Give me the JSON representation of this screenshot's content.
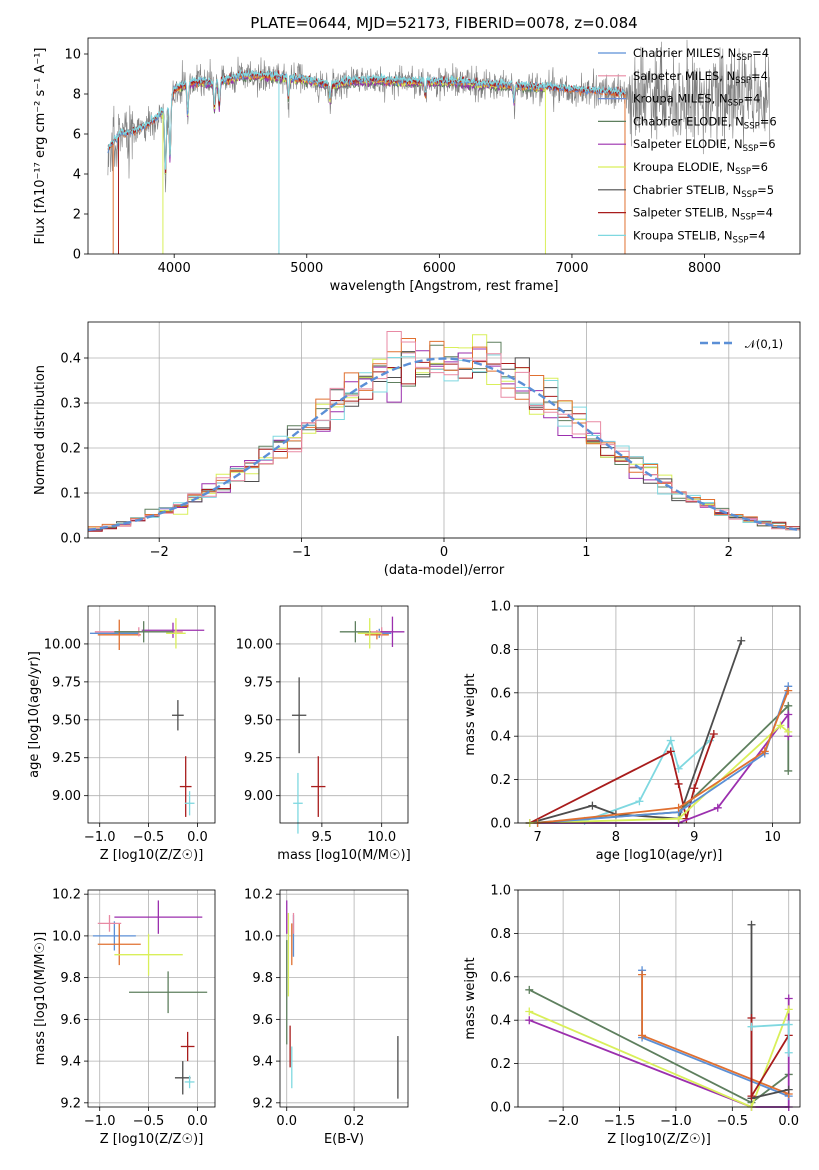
{
  "colors": {
    "chabrier_miles": "#5b8fd6",
    "salpeter_miles": "#e88aa4",
    "kroupa_miles": "#6c8cd5",
    "chabrier_elodie": "#5e7f5e",
    "salpeter_elodie": "#9b2fae",
    "kroupa_elodie": "#d9ef5a",
    "chabrier_stelib": "#4d4d4d",
    "salpeter_stelib": "#a81c1c",
    "kroupa_stelib": "#7fd8e0",
    "orange": "#e07030",
    "data_gray": "#808080"
  },
  "chart_data": [
    {
      "type": "line",
      "id": "spectrum",
      "title": "PLATE=0644, MJD=52173, FIBERID=0078, z=0.084",
      "xlabel": "wavelength [Angstrom, rest frame]",
      "ylabel": "Flux [fλ10⁻¹⁷ erg cm⁻² s⁻¹ A⁻¹]",
      "xlim": [
        3350,
        8720
      ],
      "ylim": [
        0,
        10.8
      ],
      "xticks": [
        4000,
        5000,
        6000,
        7000,
        8000
      ],
      "yticks": [
        0,
        2,
        4,
        6,
        8,
        10
      ],
      "grid": false,
      "legend_position": "upper right",
      "legend": [
        {
          "label": "Chabrier MILES, N",
          "sub": "SSP",
          "tail": "=4",
          "color": "chabrier_miles"
        },
        {
          "label": "Salpeter MILES, N",
          "sub": "SSP",
          "tail": "=4",
          "color": "salpeter_miles"
        },
        {
          "label": "Kroupa MILES, N",
          "sub": "SSP",
          "tail": "=4",
          "color": "kroupa_miles"
        },
        {
          "label": "Chabrier ELODIE, N",
          "sub": "SSP",
          "tail": "=6",
          "color": "chabrier_elodie"
        },
        {
          "label": "Salpeter ELODIE, N",
          "sub": "SSP",
          "tail": "=6",
          "color": "salpeter_elodie"
        },
        {
          "label": "Kroupa ELODIE, N",
          "sub": "SSP",
          "tail": "=6",
          "color": "kroupa_elodie"
        },
        {
          "label": "Chabrier STELIB, N",
          "sub": "SSP",
          "tail": "=5",
          "color": "chabrier_stelib"
        },
        {
          "label": "Salpeter STELIB, N",
          "sub": "SSP",
          "tail": "=4",
          "color": "salpeter_stelib"
        },
        {
          "label": "Kroupa STELIB, N",
          "sub": "SSP",
          "tail": "=4",
          "color": "kroupa_stelib"
        }
      ],
      "continuum": [
        [
          3500,
          5.2
        ],
        [
          3600,
          6.0
        ],
        [
          3700,
          6.1
        ],
        [
          3800,
          6.4
        ],
        [
          3900,
          7.0
        ],
        [
          3950,
          7.2
        ],
        [
          4000,
          8.2
        ],
        [
          4100,
          8.5
        ],
        [
          4200,
          8.6
        ],
        [
          4300,
          8.5
        ],
        [
          4400,
          8.7
        ],
        [
          4500,
          8.9
        ],
        [
          4700,
          8.9
        ],
        [
          4860,
          8.8
        ],
        [
          5000,
          8.7
        ],
        [
          5175,
          8.4
        ],
        [
          5300,
          8.6
        ],
        [
          5500,
          8.7
        ],
        [
          5700,
          8.6
        ],
        [
          5900,
          8.6
        ],
        [
          6100,
          8.6
        ],
        [
          6300,
          8.5
        ],
        [
          6563,
          8.4
        ],
        [
          6800,
          8.3
        ],
        [
          7000,
          8.2
        ],
        [
          7200,
          8.1
        ],
        [
          7400,
          8.0
        ],
        [
          7600,
          7.9
        ]
      ],
      "absorption_lines": [
        [
          3934,
          3.9
        ],
        [
          3969,
          4.8
        ],
        [
          4102,
          7.0
        ],
        [
          4304,
          7.3
        ],
        [
          4340,
          7.4
        ],
        [
          4861,
          7.8
        ],
        [
          5175,
          7.7
        ],
        [
          5893,
          7.9
        ],
        [
          6563,
          7.6
        ]
      ]
    },
    {
      "type": "histogram",
      "id": "residuals",
      "xlabel": "(data-model)/error",
      "ylabel": "Normed distribution",
      "xlim": [
        -2.5,
        2.5
      ],
      "ylim": [
        0,
        0.48
      ],
      "xticks": [
        -2,
        -1,
        0,
        1,
        2
      ],
      "yticks": [
        0.0,
        0.1,
        0.2,
        0.3,
        0.4
      ],
      "grid": true,
      "legend": [
        {
          "label": "𝒩(0,1)",
          "style": "dashed",
          "color": "chabrier_miles"
        }
      ],
      "legend_position": "upper right",
      "bin_width": 0.1,
      "series_colors": [
        "chabrier_elodie",
        "salpeter_elodie",
        "kroupa_elodie",
        "chabrier_stelib",
        "salpeter_stelib",
        "kroupa_stelib",
        "orange",
        "salpeter_miles"
      ]
    },
    {
      "type": "scatter",
      "id": "age_vs_Z",
      "xlabel": "Z [log10(Z/Z☉)]",
      "ylabel": "age  [log10(age/yr)]",
      "xlim": [
        -1.12,
        0.18
      ],
      "ylim": [
        8.82,
        10.25
      ],
      "xticks": [
        -1.0,
        -0.5,
        0.0
      ],
      "yticks": [
        9.0,
        9.25,
        9.5,
        9.75,
        10.0
      ],
      "grid": true,
      "points": [
        {
          "x": -0.85,
          "y": 10.07,
          "xerr": 0.25,
          "yerr": 0.0,
          "color": "chabrier_miles"
        },
        {
          "x": -0.8,
          "y": 10.06,
          "xerr": 0.22,
          "yerr": 0.1,
          "color": "orange"
        },
        {
          "x": -0.6,
          "y": 10.08,
          "xerr": 0.45,
          "yerr": 0.03,
          "color": "salpeter_miles"
        },
        {
          "x": -0.25,
          "y": 10.09,
          "xerr": 0.32,
          "yerr": 0.05,
          "color": "salpeter_elodie"
        },
        {
          "x": -0.55,
          "y": 10.08,
          "xerr": 0.3,
          "yerr": 0.07,
          "color": "chabrier_elodie"
        },
        {
          "x": -0.22,
          "y": 10.07,
          "xerr": 0.1,
          "yerr": 0.1,
          "color": "kroupa_elodie"
        },
        {
          "x": -0.2,
          "y": 9.53,
          "xerr": 0.06,
          "yerr": 0.1,
          "color": "chabrier_stelib"
        },
        {
          "x": -0.12,
          "y": 9.06,
          "xerr": 0.06,
          "yerr": 0.2,
          "color": "salpeter_stelib"
        },
        {
          "x": -0.08,
          "y": 8.95,
          "xerr": 0.05,
          "yerr": 0.08,
          "color": "kroupa_stelib"
        }
      ]
    },
    {
      "type": "scatter",
      "id": "age_vs_mass",
      "xlabel": "mass [log10(M/M☉)]",
      "ylabel": "",
      "xlim": [
        9.15,
        10.22
      ],
      "ylim": [
        8.82,
        10.25
      ],
      "xticks": [
        9.5,
        10.0
      ],
      "yticks": [
        9.0,
        9.25,
        9.5,
        9.75,
        10.0
      ],
      "grid": true,
      "points": [
        {
          "x": 9.98,
          "y": 10.07,
          "xerr": 0.1,
          "yerr": 0.03,
          "color": "chabrier_miles"
        },
        {
          "x": 9.96,
          "y": 10.06,
          "xerr": 0.1,
          "yerr": 0.03,
          "color": "orange"
        },
        {
          "x": 10.0,
          "y": 10.08,
          "xerr": 0.1,
          "yerr": 0.03,
          "color": "salpeter_miles"
        },
        {
          "x": 10.09,
          "y": 10.08,
          "xerr": 0.1,
          "yerr": 0.1,
          "color": "salpeter_elodie"
        },
        {
          "x": 9.78,
          "y": 10.08,
          "xerr": 0.13,
          "yerr": 0.07,
          "color": "chabrier_elodie"
        },
        {
          "x": 9.9,
          "y": 10.07,
          "xerr": 0.1,
          "yerr": 0.1,
          "color": "kroupa_elodie"
        },
        {
          "x": 9.31,
          "y": 9.53,
          "xerr": 0.06,
          "yerr": 0.25,
          "color": "chabrier_stelib"
        },
        {
          "x": 9.47,
          "y": 9.06,
          "xerr": 0.06,
          "yerr": 0.2,
          "color": "salpeter_stelib"
        },
        {
          "x": 9.3,
          "y": 8.95,
          "xerr": 0.04,
          "yerr": 0.2,
          "color": "kroupa_stelib"
        }
      ]
    },
    {
      "type": "line",
      "id": "weight_vs_age",
      "xlabel": "age  [log10(age/yr)]",
      "ylabel": "mass weight",
      "xlim": [
        6.75,
        10.35
      ],
      "ylim": [
        0,
        1.0
      ],
      "xticks": [
        7,
        8,
        9,
        10
      ],
      "yticks": [
        0.0,
        0.2,
        0.4,
        0.6,
        0.8,
        1.0
      ],
      "grid": true,
      "series": [
        {
          "color": "kroupa_stelib",
          "points": [
            [
              6.9,
              0.0
            ],
            [
              7.6,
              0.01
            ],
            [
              8.3,
              0.1
            ],
            [
              8.7,
              0.38
            ],
            [
              8.8,
              0.25
            ],
            [
              9.2,
              0.38
            ]
          ]
        },
        {
          "color": "chabrier_stelib",
          "points": [
            [
              6.9,
              0.0
            ],
            [
              7.7,
              0.08
            ],
            [
              8.0,
              0.04
            ],
            [
              8.8,
              0.02
            ],
            [
              9.6,
              0.84
            ]
          ]
        },
        {
          "color": "salpeter_stelib",
          "points": [
            [
              6.9,
              0.0
            ],
            [
              8.7,
              0.33
            ],
            [
              8.8,
              0.18
            ],
            [
              8.9,
              0.02
            ],
            [
              9.0,
              0.16
            ],
            [
              9.25,
              0.41
            ]
          ]
        },
        {
          "color": "chabrier_elodie",
          "points": [
            [
              6.9,
              0.0
            ],
            [
              8.8,
              0.05
            ],
            [
              10.2,
              0.54
            ],
            [
              10.2,
              0.24
            ]
          ]
        },
        {
          "color": "salpeter_elodie",
          "points": [
            [
              6.9,
              0.0
            ],
            [
              8.8,
              0.0
            ],
            [
              9.3,
              0.07
            ],
            [
              10.2,
              0.5
            ],
            [
              10.2,
              0.4
            ]
          ]
        },
        {
          "color": "kroupa_elodie",
          "points": [
            [
              6.9,
              0.0
            ],
            [
              8.8,
              0.02
            ],
            [
              10.1,
              0.45
            ],
            [
              10.2,
              0.42
            ]
          ]
        },
        {
          "color": "chabrier_miles",
          "points": [
            [
              7.0,
              0.0
            ],
            [
              8.8,
              0.05
            ],
            [
              9.9,
              0.32
            ],
            [
              10.2,
              0.63
            ]
          ]
        },
        {
          "color": "orange",
          "points": [
            [
              7.0,
              0.0
            ],
            [
              8.8,
              0.07
            ],
            [
              9.9,
              0.33
            ],
            [
              10.2,
              0.61
            ]
          ]
        }
      ]
    },
    {
      "type": "scatter",
      "id": "mass_vs_Z",
      "xlabel": "Z [log10(Z/Z☉)]",
      "ylabel": "mass [log10(M/M☉)]",
      "xlim": [
        -1.12,
        0.18
      ],
      "ylim": [
        9.18,
        10.22
      ],
      "xticks": [
        -1.0,
        -0.5,
        0.0
      ],
      "yticks": [
        9.2,
        9.4,
        9.6,
        9.8,
        10.0,
        10.2
      ],
      "grid": true,
      "points": [
        {
          "x": -0.85,
          "y": 10.0,
          "xerr": 0.22,
          "yerr": 0.07,
          "color": "chabrier_miles"
        },
        {
          "x": -0.8,
          "y": 9.96,
          "xerr": 0.22,
          "yerr": 0.1,
          "color": "orange"
        },
        {
          "x": -0.9,
          "y": 10.06,
          "xerr": 0.12,
          "yerr": 0.04,
          "color": "salpeter_miles"
        },
        {
          "x": -0.4,
          "y": 10.09,
          "xerr": 0.45,
          "yerr": 0.08,
          "color": "salpeter_elodie"
        },
        {
          "x": -0.3,
          "y": 9.73,
          "xerr": 0.4,
          "yerr": 0.1,
          "color": "chabrier_elodie"
        },
        {
          "x": -0.5,
          "y": 9.91,
          "xerr": 0.35,
          "yerr": 0.1,
          "color": "kroupa_elodie"
        },
        {
          "x": -0.15,
          "y": 9.32,
          "xerr": 0.08,
          "yerr": 0.08,
          "color": "chabrier_stelib"
        },
        {
          "x": -0.1,
          "y": 9.47,
          "xerr": 0.07,
          "yerr": 0.07,
          "color": "salpeter_stelib"
        },
        {
          "x": -0.08,
          "y": 9.3,
          "xerr": 0.05,
          "yerr": 0.03,
          "color": "kroupa_stelib"
        }
      ]
    },
    {
      "type": "scatter",
      "id": "mass_vs_ebv",
      "xlabel": "E(B-V)",
      "ylabel": "",
      "xlim": [
        -0.02,
        0.36
      ],
      "ylim": [
        9.18,
        10.22
      ],
      "xticks": [
        0.0,
        0.2
      ],
      "yticks": [
        9.2,
        9.4,
        9.6,
        9.8,
        10.0,
        10.2
      ],
      "grid": true,
      "points": [
        {
          "x": 0.02,
          "y": 10.0,
          "xerr": 0.0,
          "yerr": 0.1,
          "color": "chabrier_miles"
        },
        {
          "x": 0.015,
          "y": 9.96,
          "xerr": 0.0,
          "yerr": 0.1,
          "color": "orange"
        },
        {
          "x": 0.02,
          "y": 10.06,
          "xerr": 0.0,
          "yerr": 0.05,
          "color": "salpeter_miles"
        },
        {
          "x": 0.0,
          "y": 10.09,
          "xerr": 0.0,
          "yerr": 0.08,
          "color": "salpeter_elodie"
        },
        {
          "x": 0.0,
          "y": 9.73,
          "xerr": 0.0,
          "yerr": 0.25,
          "color": "chabrier_elodie"
        },
        {
          "x": 0.005,
          "y": 9.91,
          "xerr": 0.0,
          "yerr": 0.2,
          "color": "kroupa_elodie"
        },
        {
          "x": 0.33,
          "y": 9.37,
          "xerr": 0.0,
          "yerr": 0.15,
          "color": "chabrier_stelib"
        },
        {
          "x": 0.01,
          "y": 9.47,
          "xerr": 0.0,
          "yerr": 0.1,
          "color": "salpeter_stelib"
        },
        {
          "x": 0.015,
          "y": 9.37,
          "xerr": 0.0,
          "yerr": 0.1,
          "color": "kroupa_stelib"
        }
      ]
    },
    {
      "type": "line",
      "id": "weight_vs_Z",
      "xlabel": "Z [log10(Z/Z☉)]",
      "ylabel": "mass weight",
      "xlim": [
        -2.4,
        0.1
      ],
      "ylim": [
        0,
        1.0
      ],
      "xticks": [
        -2.0,
        -1.5,
        -1.0,
        -0.5,
        0.0
      ],
      "yticks": [
        0.0,
        0.2,
        0.4,
        0.6,
        0.8,
        1.0
      ],
      "grid": true,
      "series": [
        {
          "color": "chabrier_elodie",
          "points": [
            [
              -2.3,
              0.54
            ],
            [
              -0.33,
              0.02
            ],
            [
              0.0,
              0.15
            ]
          ]
        },
        {
          "color": "salpeter_elodie",
          "points": [
            [
              -2.3,
              0.4
            ],
            [
              -0.33,
              0.0
            ],
            [
              0.0,
              0.0
            ],
            [
              0.0,
              0.5
            ]
          ]
        },
        {
          "color": "kroupa_elodie",
          "points": [
            [
              -2.3,
              0.44
            ],
            [
              -0.33,
              0.0
            ],
            [
              0.0,
              0.45
            ]
          ]
        },
        {
          "color": "chabrier_miles",
          "points": [
            [
              -1.3,
              0.63
            ],
            [
              -1.3,
              0.32
            ],
            [
              0.0,
              0.05
            ]
          ]
        },
        {
          "color": "orange",
          "points": [
            [
              -1.3,
              0.61
            ],
            [
              -1.3,
              0.33
            ],
            [
              0.0,
              0.06
            ]
          ]
        },
        {
          "color": "chabrier_stelib",
          "points": [
            [
              -0.33,
              0.84
            ],
            [
              -0.33,
              0.04
            ],
            [
              0.0,
              0.08
            ]
          ]
        },
        {
          "color": "salpeter_stelib",
          "points": [
            [
              -0.33,
              0.41
            ],
            [
              -0.33,
              0.05
            ],
            [
              0.0,
              0.33
            ]
          ]
        },
        {
          "color": "kroupa_stelib",
          "points": [
            [
              -0.33,
              0.37
            ],
            [
              0.0,
              0.38
            ],
            [
              0.0,
              0.25
            ]
          ]
        }
      ]
    }
  ]
}
